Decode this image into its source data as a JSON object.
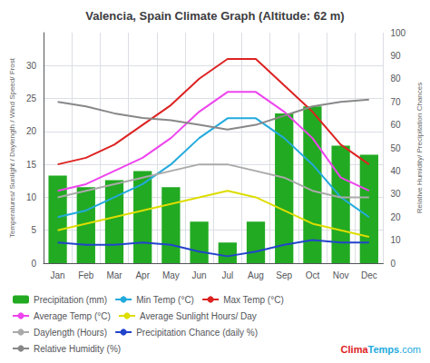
{
  "chart_data": {
    "type": "bar",
    "title": "Valencia, Spain Climate Graph (Altitude: 62 m)",
    "categories": [
      "Jan",
      "Feb",
      "Mar",
      "Apr",
      "May",
      "Jun",
      "Jul",
      "Aug",
      "Sep",
      "Oct",
      "Nov",
      "Dec"
    ],
    "series": [
      {
        "name": "Precipitation (mm)",
        "type": "bar",
        "axis": "y2",
        "color": "#22aa22",
        "values": [
          38,
          33,
          36,
          40,
          33,
          18,
          9,
          18,
          65,
          68,
          51,
          47
        ]
      },
      {
        "name": "Min Temp (°C)",
        "type": "line",
        "color": "#22aadd",
        "values": [
          7,
          8,
          10,
          12,
          15,
          19,
          22,
          22,
          19,
          15,
          10,
          7
        ]
      },
      {
        "name": "Max Temp (°C)",
        "type": "line",
        "color": "#dd2222",
        "values": [
          15,
          16,
          18,
          21,
          24,
          28,
          31,
          31,
          27,
          23,
          18,
          15
        ]
      },
      {
        "name": "Average Temp (°C)",
        "type": "line",
        "color": "#ee44ee",
        "values": [
          11,
          12,
          14,
          16,
          19,
          23,
          26,
          26,
          23,
          19,
          13,
          11
        ]
      },
      {
        "name": "Average Sunlight Hours/ Day",
        "type": "line",
        "color": "#dddd00",
        "values": [
          5,
          6,
          7,
          8,
          9,
          10,
          11,
          10,
          8,
          6,
          5,
          4
        ]
      },
      {
        "name": "Daylength (Hours)",
        "type": "line",
        "color": "#aaaaaa",
        "values": [
          10,
          11,
          12,
          13,
          14,
          15,
          15,
          14,
          13,
          11,
          10,
          10
        ]
      },
      {
        "name": "Precipitation Chance (daily %)",
        "type": "line",
        "axis": "y2",
        "color": "#2244cc",
        "values": [
          9,
          8,
          8,
          9,
          8,
          5,
          3,
          5,
          8,
          10,
          9,
          9
        ]
      },
      {
        "name": "Relative Humidity (%)",
        "type": "line",
        "axis": "y2",
        "color": "#888888",
        "values": [
          70,
          68,
          65,
          63,
          62,
          60,
          58,
          60,
          64,
          68,
          70,
          71
        ]
      }
    ],
    "ylabel": "Temperatures/ Sunlight / Daylength / Wind Speed/ Frost",
    "y2label": "Relative Humidity/ Precipitation Chances",
    "ylim": [
      0,
      35
    ],
    "yticks": [
      0,
      5,
      10,
      15,
      20,
      25,
      30
    ],
    "y2lim": [
      0,
      100
    ],
    "y2ticks": [
      0,
      10,
      20,
      30,
      40,
      50,
      60,
      70,
      80,
      90,
      100
    ],
    "grid": true,
    "legend": "lower left",
    "annotations": [
      {
        "text": "Clima",
        "color": "#dd2222"
      },
      {
        "text": "Temps",
        "color": "#22aadd"
      },
      {
        "text": ".com",
        "color": "#22aadd"
      }
    ]
  }
}
